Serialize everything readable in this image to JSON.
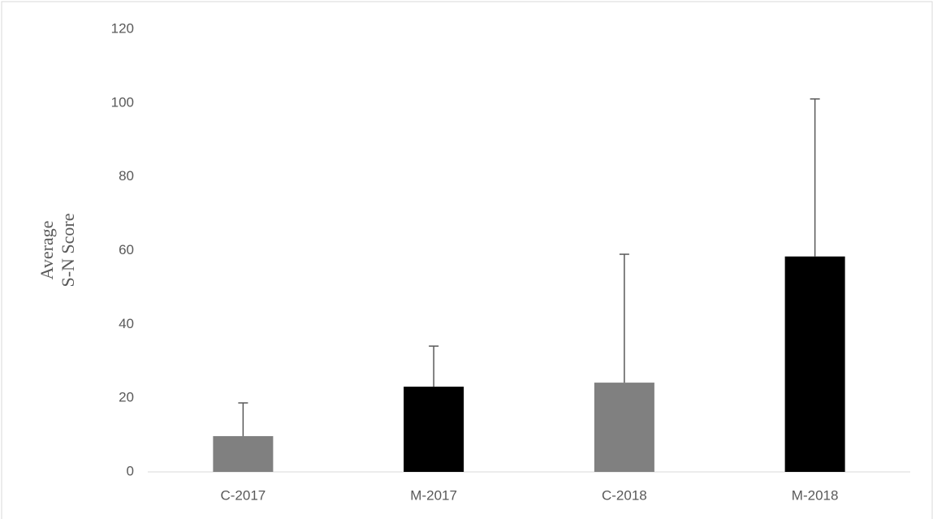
{
  "chart_data": {
    "type": "bar",
    "y_label": [
      "Average",
      "S-N Score"
    ],
    "categories": [
      "C-2017",
      "M-2017",
      "C-2018",
      "M-2018"
    ],
    "values": [
      9.7,
      23.1,
      24.2,
      58.4
    ],
    "errors": [
      9.0,
      11.0,
      34.8,
      42.7
    ],
    "colors": [
      "#808080",
      "#000000",
      "#808080",
      "#000000"
    ],
    "error_color": "#595959",
    "ylim": [
      0,
      120
    ],
    "yticks": [
      0,
      20,
      40,
      60,
      80,
      100,
      120
    ],
    "grid": false
  }
}
